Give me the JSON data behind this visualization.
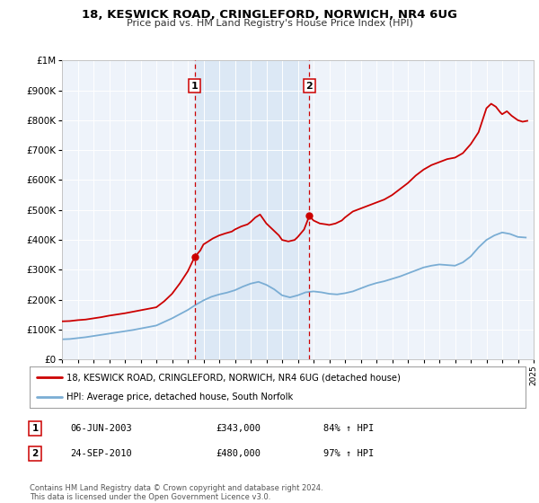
{
  "title_line1": "18, KESWICK ROAD, CRINGLEFORD, NORWICH, NR4 6UG",
  "title_line2": "Price paid vs. HM Land Registry's House Price Index (HPI)",
  "plot_bg_color": "#eef3fa",
  "red_line_label": "18, KESWICK ROAD, CRINGLEFORD, NORWICH, NR4 6UG (detached house)",
  "blue_line_label": "HPI: Average price, detached house, South Norfolk",
  "sale1_date": 2003.44,
  "sale1_price": 343000,
  "sale1_label": "1",
  "sale1_text": "06-JUN-2003",
  "sale1_amount": "£343,000",
  "sale1_hpi": "84% ↑ HPI",
  "sale2_date": 2010.73,
  "sale2_price": 480000,
  "sale2_label": "2",
  "sale2_text": "24-SEP-2010",
  "sale2_amount": "£480,000",
  "sale2_hpi": "97% ↑ HPI",
  "ylim_max": 1000000,
  "xlim_min": 1995,
  "xlim_max": 2025,
  "shaded_color": "#dce8f5",
  "red_color": "#cc0000",
  "blue_color": "#7aadd4",
  "footer_text": "Contains HM Land Registry data © Crown copyright and database right 2024.\nThis data is licensed under the Open Government Licence v3.0.",
  "years_red": [
    1995.0,
    1995.5,
    1996.0,
    1996.5,
    1997.0,
    1997.5,
    1998.0,
    1998.5,
    1999.0,
    1999.5,
    2000.0,
    2000.5,
    2001.0,
    2001.5,
    2002.0,
    2002.5,
    2003.0,
    2003.44,
    2003.8,
    2004.0,
    2004.3,
    2004.6,
    2005.0,
    2005.4,
    2005.8,
    2006.0,
    2006.4,
    2006.8,
    2007.0,
    2007.3,
    2007.6,
    2008.0,
    2008.4,
    2008.8,
    2009.0,
    2009.4,
    2009.8,
    2010.0,
    2010.4,
    2010.73,
    2011.0,
    2011.4,
    2011.8,
    2012.0,
    2012.4,
    2012.8,
    2013.0,
    2013.5,
    2014.0,
    2014.5,
    2015.0,
    2015.5,
    2016.0,
    2016.5,
    2017.0,
    2017.5,
    2018.0,
    2018.5,
    2019.0,
    2019.5,
    2020.0,
    2020.5,
    2021.0,
    2021.5,
    2022.0,
    2022.3,
    2022.6,
    2022.9,
    2023.0,
    2023.3,
    2023.6,
    2024.0,
    2024.3,
    2024.6
  ],
  "values_red": [
    128000,
    129000,
    132000,
    134000,
    138000,
    142000,
    147000,
    151000,
    155000,
    160000,
    165000,
    170000,
    175000,
    195000,
    220000,
    255000,
    295000,
    343000,
    365000,
    385000,
    395000,
    405000,
    415000,
    422000,
    428000,
    435000,
    445000,
    452000,
    460000,
    475000,
    485000,
    455000,
    435000,
    415000,
    400000,
    395000,
    400000,
    410000,
    435000,
    480000,
    465000,
    455000,
    452000,
    450000,
    455000,
    465000,
    475000,
    495000,
    505000,
    515000,
    525000,
    535000,
    550000,
    570000,
    590000,
    615000,
    635000,
    650000,
    660000,
    670000,
    675000,
    690000,
    720000,
    760000,
    840000,
    855000,
    845000,
    825000,
    820000,
    830000,
    815000,
    800000,
    795000,
    798000
  ],
  "years_blue": [
    1995.0,
    1995.5,
    1996.0,
    1996.5,
    1997.0,
    1997.5,
    1998.0,
    1998.5,
    1999.0,
    1999.5,
    2000.0,
    2000.5,
    2001.0,
    2001.5,
    2002.0,
    2002.5,
    2003.0,
    2003.5,
    2004.0,
    2004.5,
    2005.0,
    2005.5,
    2006.0,
    2006.5,
    2007.0,
    2007.5,
    2008.0,
    2008.5,
    2009.0,
    2009.5,
    2010.0,
    2010.5,
    2011.0,
    2011.5,
    2012.0,
    2012.5,
    2013.0,
    2013.5,
    2014.0,
    2014.5,
    2015.0,
    2015.5,
    2016.0,
    2016.5,
    2017.0,
    2017.5,
    2018.0,
    2018.5,
    2019.0,
    2019.5,
    2020.0,
    2020.5,
    2021.0,
    2021.5,
    2022.0,
    2022.5,
    2023.0,
    2023.5,
    2024.0,
    2024.5
  ],
  "values_blue": [
    68000,
    69000,
    72000,
    75000,
    79000,
    83000,
    87000,
    91000,
    95000,
    99000,
    104000,
    109000,
    114000,
    126000,
    138000,
    152000,
    166000,
    183000,
    198000,
    210000,
    218000,
    224000,
    232000,
    244000,
    254000,
    260000,
    250000,
    235000,
    215000,
    208000,
    215000,
    225000,
    228000,
    225000,
    220000,
    218000,
    222000,
    228000,
    238000,
    248000,
    256000,
    262000,
    270000,
    278000,
    288000,
    298000,
    308000,
    314000,
    318000,
    316000,
    314000,
    325000,
    345000,
    375000,
    400000,
    415000,
    425000,
    420000,
    410000,
    408000
  ]
}
